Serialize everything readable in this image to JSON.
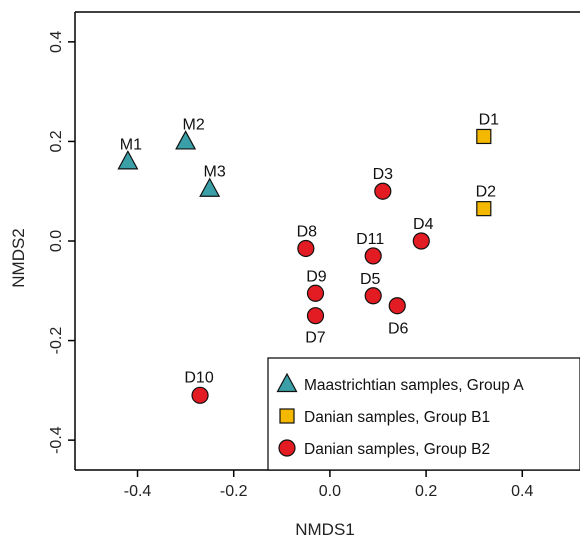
{
  "chart_data": {
    "type": "scatter",
    "title": "",
    "xlabel": "NMDS1",
    "ylabel": "NMDS2",
    "xlim": [
      -0.53,
      0.52
    ],
    "ylim": [
      -0.46,
      0.46
    ],
    "xticks": [
      "-0.4",
      "-0.2",
      "0.0",
      "0.2",
      "0.4"
    ],
    "yticks": [
      "-0.4",
      "-0.2",
      "0.0",
      "0.2",
      "0.4"
    ],
    "grid": false,
    "legend_position": "bottom-right",
    "series": [
      {
        "name": "Maastrichtian samples, Group A",
        "marker": "triangle",
        "color": "#3a9fa6",
        "points": [
          {
            "label": "M1",
            "x": -0.42,
            "y": 0.16
          },
          {
            "label": "M2",
            "x": -0.3,
            "y": 0.2
          },
          {
            "label": "M3",
            "x": -0.25,
            "y": 0.105
          }
        ]
      },
      {
        "name": "Danian samples, Group B1",
        "marker": "square",
        "color": "#f5b800",
        "points": [
          {
            "label": "D1",
            "x": 0.32,
            "y": 0.21
          },
          {
            "label": "D2",
            "x": 0.32,
            "y": 0.065
          }
        ]
      },
      {
        "name": "Danian samples, Group B2",
        "marker": "circle",
        "color": "#e31b23",
        "points": [
          {
            "label": "D3",
            "x": 0.11,
            "y": 0.1
          },
          {
            "label": "D4",
            "x": 0.19,
            "y": 0.0
          },
          {
            "label": "D11",
            "x": 0.09,
            "y": -0.03
          },
          {
            "label": "D8",
            "x": -0.05,
            "y": -0.015
          },
          {
            "label": "D9",
            "x": -0.03,
            "y": -0.105
          },
          {
            "label": "D5",
            "x": 0.09,
            "y": -0.11
          },
          {
            "label": "D6",
            "x": 0.14,
            "y": -0.13
          },
          {
            "label": "D7",
            "x": -0.03,
            "y": -0.15
          },
          {
            "label": "D10",
            "x": -0.27,
            "y": -0.31
          }
        ]
      }
    ]
  }
}
